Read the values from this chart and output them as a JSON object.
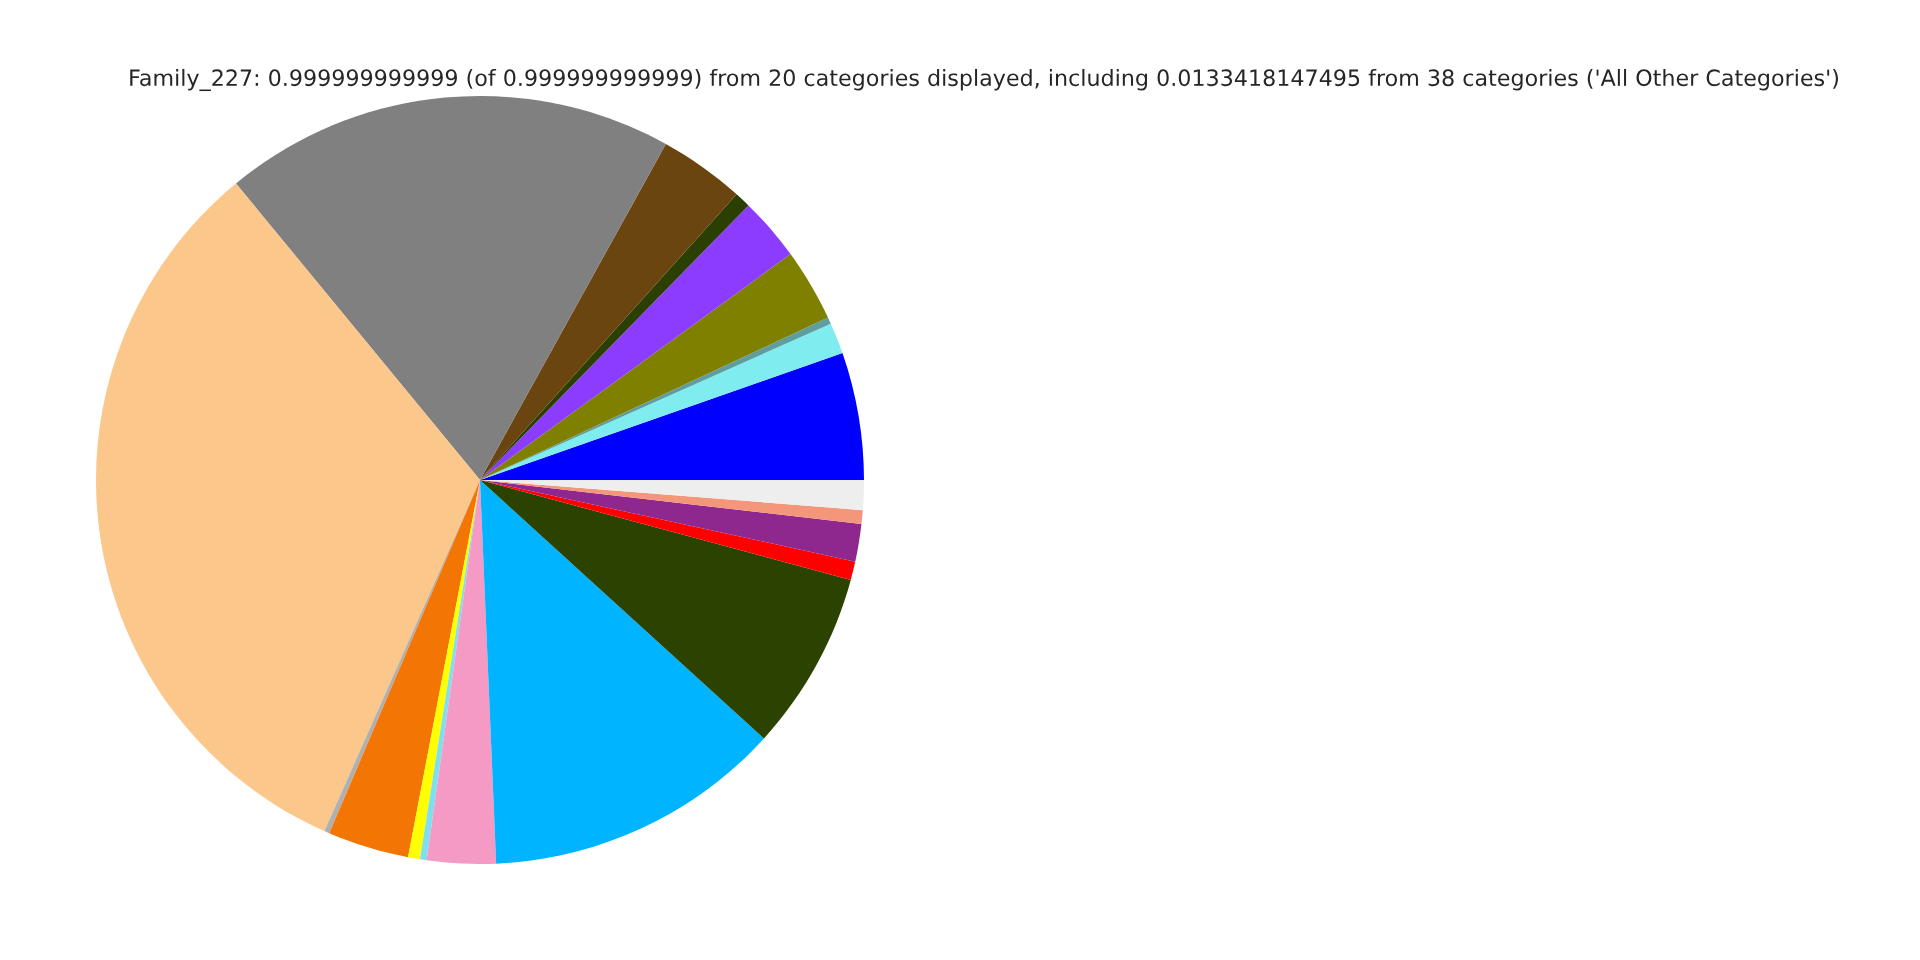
{
  "chart_data": {
    "type": "pie",
    "title": "Family_227: 0.999999999999 (of 0.999999999999) from 20 categories displayed, including 0.0133418147495 from 38 categories ('All Other Categories')",
    "categories": [
      null,
      null,
      null,
      null,
      null,
      null,
      null,
      null,
      null,
      null,
      null,
      null,
      null,
      null,
      null,
      null,
      null,
      null,
      null,
      null
    ],
    "values": [
      5.36,
      1.31,
      0.28,
      3.06,
      2.67,
      0.67,
      3.61,
      19.0,
      32.4,
      0.22,
      3.42,
      0.5,
      0.28,
      2.89,
      12.58,
      7.56,
      0.78,
      1.58,
      0.58,
      1.25
    ],
    "colors": [
      "#0000ff",
      "#7fecf0",
      "#5f9ea0",
      "#808000",
      "#8c3cff",
      "#2b3f00",
      "#6b4510",
      "#808080",
      "#fcc78b",
      "#b0b0b0",
      "#f37504",
      "#ffff00",
      "#7fdfef",
      "#f49ac4",
      "#00b4ff",
      "#2b4200",
      "#ff0000",
      "#8e278e",
      "#f4967a",
      "#eeeeee"
    ]
  }
}
